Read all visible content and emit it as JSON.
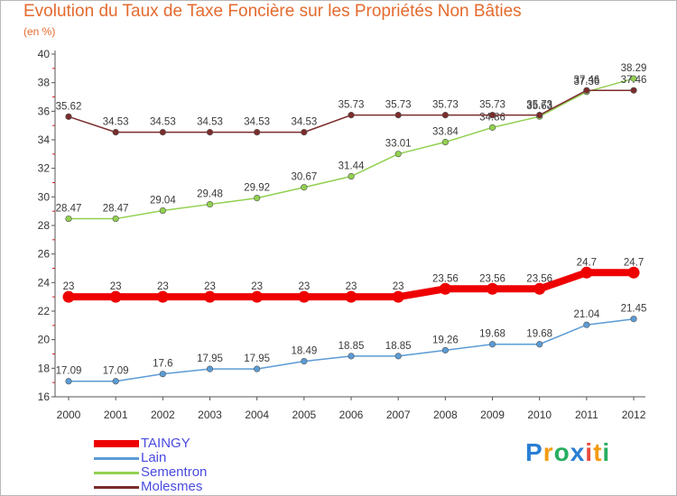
{
  "header": {
    "title": "Evolution du Taux de Taxe Foncière sur les Propriétés Non Bâties",
    "unit": "(en %)"
  },
  "logo": {
    "text": "Proxiti",
    "letters": [
      "P",
      "r",
      "o",
      "x",
      "i",
      "t",
      "i"
    ],
    "colors": [
      "#2a7fd4",
      "#f39c12",
      "#27ae60",
      "#2a7fd4",
      "#e74c3c",
      "#f39c12",
      "#27ae60"
    ]
  },
  "chart_data": {
    "type": "line",
    "title": "Evolution du Taux de Taxe Foncière sur les Propriétés Non Bâties",
    "ylabel": "(en %)",
    "xlabel": "",
    "ylim": [
      16,
      40
    ],
    "yticks": [
      16,
      18,
      20,
      22,
      24,
      26,
      28,
      30,
      32,
      34,
      36,
      38,
      40
    ],
    "x": [
      "2000",
      "2001",
      "2002",
      "2003",
      "2004",
      "2005",
      "2006",
      "2007",
      "2008",
      "2009",
      "2010",
      "2011",
      "2012"
    ],
    "grid": false,
    "legend_position": "bottom-left",
    "series": [
      {
        "name": "TAINGY",
        "color": "#ee0000",
        "emphasis": true,
        "values": [
          23,
          23,
          23,
          23,
          23,
          23,
          23,
          23,
          23.56,
          23.56,
          23.56,
          24.7,
          24.7
        ],
        "labels": [
          "23",
          "23",
          "23",
          "23",
          "23",
          "23",
          "23",
          "23",
          "23.56",
          "23.56",
          "23.56",
          "24.7",
          "24.7"
        ]
      },
      {
        "name": "Lain",
        "color": "#5b9bd5",
        "values": [
          17.09,
          17.09,
          17.6,
          17.95,
          17.95,
          18.49,
          18.85,
          18.85,
          19.26,
          19.68,
          19.68,
          21.04,
          21.45
        ],
        "labels": [
          "17.09",
          "17.09",
          "17.6",
          "17.95",
          "17.95",
          "18.49",
          "18.85",
          "18.85",
          "19.26",
          "19.68",
          "19.68",
          "21.04",
          "21.45"
        ]
      },
      {
        "name": "Sementron",
        "color": "#92d050",
        "values": [
          28.47,
          28.47,
          29.04,
          29.48,
          29.92,
          30.67,
          31.44,
          33.01,
          33.84,
          34.86,
          35.63,
          37.36,
          38.29
        ],
        "labels": [
          "28.47",
          "28.47",
          "29.04",
          "29.48",
          "29.92",
          "30.67",
          "31.44",
          "33.01",
          "33.84",
          "34.86",
          "35.63",
          "37.36",
          "38.29"
        ]
      },
      {
        "name": "Molesmes",
        "color": "#7b2c2c",
        "values": [
          35.62,
          34.53,
          34.53,
          34.53,
          34.53,
          34.53,
          35.73,
          35.73,
          35.73,
          35.73,
          35.73,
          37.46,
          37.46
        ],
        "labels": [
          "35.62",
          "34.53",
          "34.53",
          "34.53",
          "34.53",
          "34.53",
          "35.73",
          "35.73",
          "35.73",
          "35.73",
          "35.73",
          "37.46",
          "37.46"
        ]
      }
    ]
  }
}
